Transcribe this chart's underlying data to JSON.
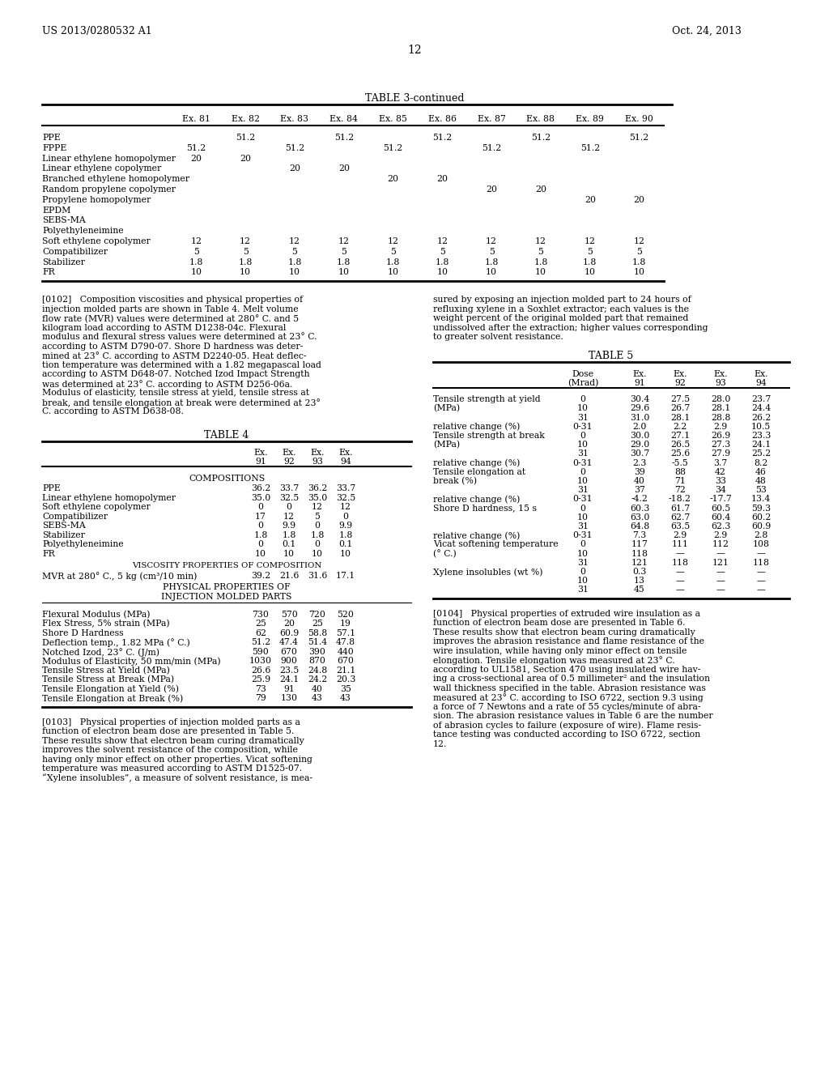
{
  "page_number": "12",
  "header_left": "US 2013/0280532 A1",
  "header_right": "Oct. 24, 2013",
  "background_color": "#ffffff",
  "table3_title": "TABLE 3-continued",
  "table3_columns": [
    "",
    "Ex. 81",
    "Ex. 82",
    "Ex. 83",
    "Ex. 84",
    "Ex. 85",
    "Ex. 86",
    "Ex. 87",
    "Ex. 88",
    "Ex. 89",
    "Ex. 90"
  ],
  "table3_rows": [
    [
      "PPE",
      "",
      "51.2",
      "",
      "51.2",
      "",
      "51.2",
      "",
      "51.2",
      "",
      "51.2"
    ],
    [
      "FPPE",
      "51.2",
      "",
      "51.2",
      "",
      "51.2",
      "",
      "51.2",
      "",
      "51.2",
      ""
    ],
    [
      "Linear ethylene homopolymer",
      "20",
      "20",
      "",
      "",
      "",
      "",
      "",
      "",
      "",
      ""
    ],
    [
      "Linear ethylene copolymer",
      "",
      "",
      "20",
      "20",
      "",
      "",
      "",
      "",
      "",
      ""
    ],
    [
      "Branched ethylene homopolymer",
      "",
      "",
      "",
      "",
      "20",
      "20",
      "",
      "",
      "",
      ""
    ],
    [
      "Random propylene copolymer",
      "",
      "",
      "",
      "",
      "",
      "",
      "20",
      "20",
      "",
      ""
    ],
    [
      "Propylene homopolymer",
      "",
      "",
      "",
      "",
      "",
      "",
      "",
      "",
      "20",
      "20"
    ],
    [
      "EPDM",
      "",
      "",
      "",
      "",
      "",
      "",
      "",
      "",
      "",
      ""
    ],
    [
      "SEBS-MA",
      "",
      "",
      "",
      "",
      "",
      "",
      "",
      "",
      "",
      ""
    ],
    [
      "Polyethyleneimine",
      "",
      "",
      "",
      "",
      "",
      "",
      "",
      "",
      "",
      ""
    ],
    [
      "Soft ethylene copolymer",
      "12",
      "12",
      "12",
      "12",
      "12",
      "12",
      "12",
      "12",
      "12",
      "12"
    ],
    [
      "Compatibilizer",
      "5",
      "5",
      "5",
      "5",
      "5",
      "5",
      "5",
      "5",
      "5",
      "5"
    ],
    [
      "Stabilizer",
      "1.8",
      "1.8",
      "1.8",
      "1.8",
      "1.8",
      "1.8",
      "1.8",
      "1.8",
      "1.8",
      "1.8"
    ],
    [
      "FR",
      "10",
      "10",
      "10",
      "10",
      "10",
      "10",
      "10",
      "10",
      "10",
      "10"
    ]
  ],
  "table4_title": "TABLE 4",
  "table4_comps": [
    [
      "PPE",
      "36.2",
      "33.7",
      "36.2",
      "33.7"
    ],
    [
      "Linear ethylene homopolymer",
      "35.0",
      "32.5",
      "35.0",
      "32.5"
    ],
    [
      "Soft ethylene copolymer",
      "0",
      "0",
      "12",
      "12"
    ],
    [
      "Compatibilizer",
      "17",
      "12",
      "5",
      "0"
    ],
    [
      "SEBS-MA",
      "0",
      "9.9",
      "0",
      "9.9"
    ],
    [
      "Stabilizer",
      "1.8",
      "1.8",
      "1.8",
      "1.8"
    ],
    [
      "Polyethyleneimine",
      "0",
      "0.1",
      "0",
      "0.1"
    ],
    [
      "FR",
      "10",
      "10",
      "10",
      "10"
    ]
  ],
  "table4_visc_row": [
    "MVR at 280° C., 5 kg (cm³/10 min)",
    "39.2",
    "21.6",
    "31.6",
    "17.1"
  ],
  "table4_phys": [
    [
      "Flexural Modulus (MPa)",
      "730",
      "570",
      "720",
      "520"
    ],
    [
      "Flex Stress, 5% strain (MPa)",
      "25",
      "20",
      "25",
      "19"
    ],
    [
      "Shore D Hardness",
      "62",
      "60.9",
      "58.8",
      "57.1"
    ],
    [
      "Deflection temp., 1.82 MPa (° C.)",
      "51.2",
      "47.4",
      "51.4",
      "47.8"
    ],
    [
      "Notched Izod, 23° C. (J/m)",
      "590",
      "670",
      "390",
      "440"
    ],
    [
      "Modulus of Elasticity, 50 mm/min (MPa)",
      "1030",
      "900",
      "870",
      "670"
    ],
    [
      "Tensile Stress at Yield (MPa)",
      "26.6",
      "23.5",
      "24.8",
      "21.1"
    ],
    [
      "Tensile Stress at Break (MPa)",
      "25.9",
      "24.1",
      "24.2",
      "20.3"
    ],
    [
      "Tensile Elongation at Yield (%)",
      "73",
      "91",
      "40",
      "35"
    ],
    [
      "Tensile Elongation at Break (%)",
      "79",
      "130",
      "43",
      "43"
    ]
  ],
  "table5_title": "TABLE 5",
  "table5_rows": [
    [
      "Tensile strength at yield",
      "0",
      "30.4",
      "27.5",
      "28.0",
      "23.7"
    ],
    [
      "(MPa)",
      "10",
      "29.6",
      "26.7",
      "28.1",
      "24.4"
    ],
    [
      "",
      "31",
      "31.0",
      "28.1",
      "28.8",
      "26.2"
    ],
    [
      "relative change (%)",
      "0-31",
      "2.0",
      "2.2",
      "2.9",
      "10.5"
    ],
    [
      "Tensile strength at break",
      "0",
      "30.0",
      "27.1",
      "26.9",
      "23.3"
    ],
    [
      "(MPa)",
      "10",
      "29.0",
      "26.5",
      "27.3",
      "24.1"
    ],
    [
      "",
      "31",
      "30.7",
      "25.6",
      "27.9",
      "25.2"
    ],
    [
      "relative change (%)",
      "0-31",
      "2.3",
      "-5.5",
      "3.7",
      "8.2"
    ],
    [
      "Tensile elongation at",
      "0",
      "39",
      "88",
      "42",
      "46"
    ],
    [
      "break (%)",
      "10",
      "40",
      "71",
      "33",
      "48"
    ],
    [
      "",
      "31",
      "37",
      "72",
      "34",
      "53"
    ],
    [
      "relative change (%)",
      "0-31",
      "-4.2",
      "-18.2",
      "-17.7",
      "13.4"
    ],
    [
      "Shore D hardness, 15 s",
      "0",
      "60.3",
      "61.7",
      "60.5",
      "59.3"
    ],
    [
      "",
      "10",
      "63.0",
      "62.7",
      "60.4",
      "60.2"
    ],
    [
      "",
      "31",
      "64.8",
      "63.5",
      "62.3",
      "60.9"
    ],
    [
      "relative change (%)",
      "0-31",
      "7.3",
      "2.9",
      "2.9",
      "2.8"
    ],
    [
      "Vicat softening temperature",
      "0",
      "117",
      "111",
      "112",
      "108"
    ],
    [
      "(° C.)",
      "10",
      "118",
      "—",
      "—",
      "—"
    ],
    [
      "",
      "31",
      "121",
      "118",
      "121",
      "118"
    ],
    [
      "Xylene insolubles (wt %)",
      "0",
      "0.3",
      "—",
      "—",
      "—"
    ],
    [
      "",
      "10",
      "13",
      "—",
      "—",
      "—"
    ],
    [
      "",
      "31",
      "45",
      "—",
      "—",
      "—"
    ]
  ],
  "lines_0102_left": [
    "[0102]   Composition viscosities and physical properties of",
    "injection molded parts are shown in Table 4. Melt volume",
    "flow rate (MVR) values were determined at 280° C. and 5",
    "kilogram load according to ASTM D1238-04c. Flexural",
    "modulus and flexural stress values were determined at 23° C.",
    "according to ASTM D790-07. Shore D hardness was deter-",
    "mined at 23° C. according to ASTM D2240-05. Heat deflec-",
    "tion temperature was determined with a 1.82 megapascal load",
    "according to ASTM D648-07. Notched Izod Impact Strength",
    "was determined at 23° C. according to ASTM D256-06a.",
    "Modulus of elasticity, tensile stress at yield, tensile stress at",
    "break, and tensile elongation at break were determined at 23°",
    "C. according to ASTM D638-08."
  ],
  "lines_0102_right": [
    "sured by exposing an injection molded part to 24 hours of",
    "refluxing xylene in a Soxhlet extractor; each values is the",
    "weight percent of the original molded part that remained",
    "undissolved after the extraction; higher values corresponding",
    "to greater solvent resistance."
  ],
  "lines_0103": [
    "[0103]   Physical properties of injection molded parts as a",
    "function of electron beam dose are presented in Table 5.",
    "These results show that electron beam curing dramatically",
    "improves the solvent resistance of the composition, while",
    "having only minor effect on other properties. Vicat softening",
    "temperature was measured according to ASTM D1525-07.",
    "“Xylene insolubles”, a measure of solvent resistance, is mea-"
  ],
  "lines_0104": [
    "[0104]   Physical properties of extruded wire insulation as a",
    "function of electron beam dose are presented in Table 6.",
    "These results show that electron beam curing dramatically",
    "improves the abrasion resistance and flame resistance of the",
    "wire insulation, while having only minor effect on tensile",
    "elongation. Tensile elongation was measured at 23° C.",
    "according to UL1581, Section 470 using insulated wire hav-",
    "ing a cross-sectional area of 0.5 millimeter² and the insulation",
    "wall thickness specified in the table. Abrasion resistance was",
    "measured at 23° C. according to ISO 6722, section 9.3 using",
    "a force of 7 Newtons and a rate of 55 cycles/minute of abra-",
    "sion. The abrasion resistance values in Table 6 are the number",
    "of abrasion cycles to failure (exposure of wire). Flame resis-",
    "tance testing was conducted according to ISO 6722, section",
    "12."
  ]
}
